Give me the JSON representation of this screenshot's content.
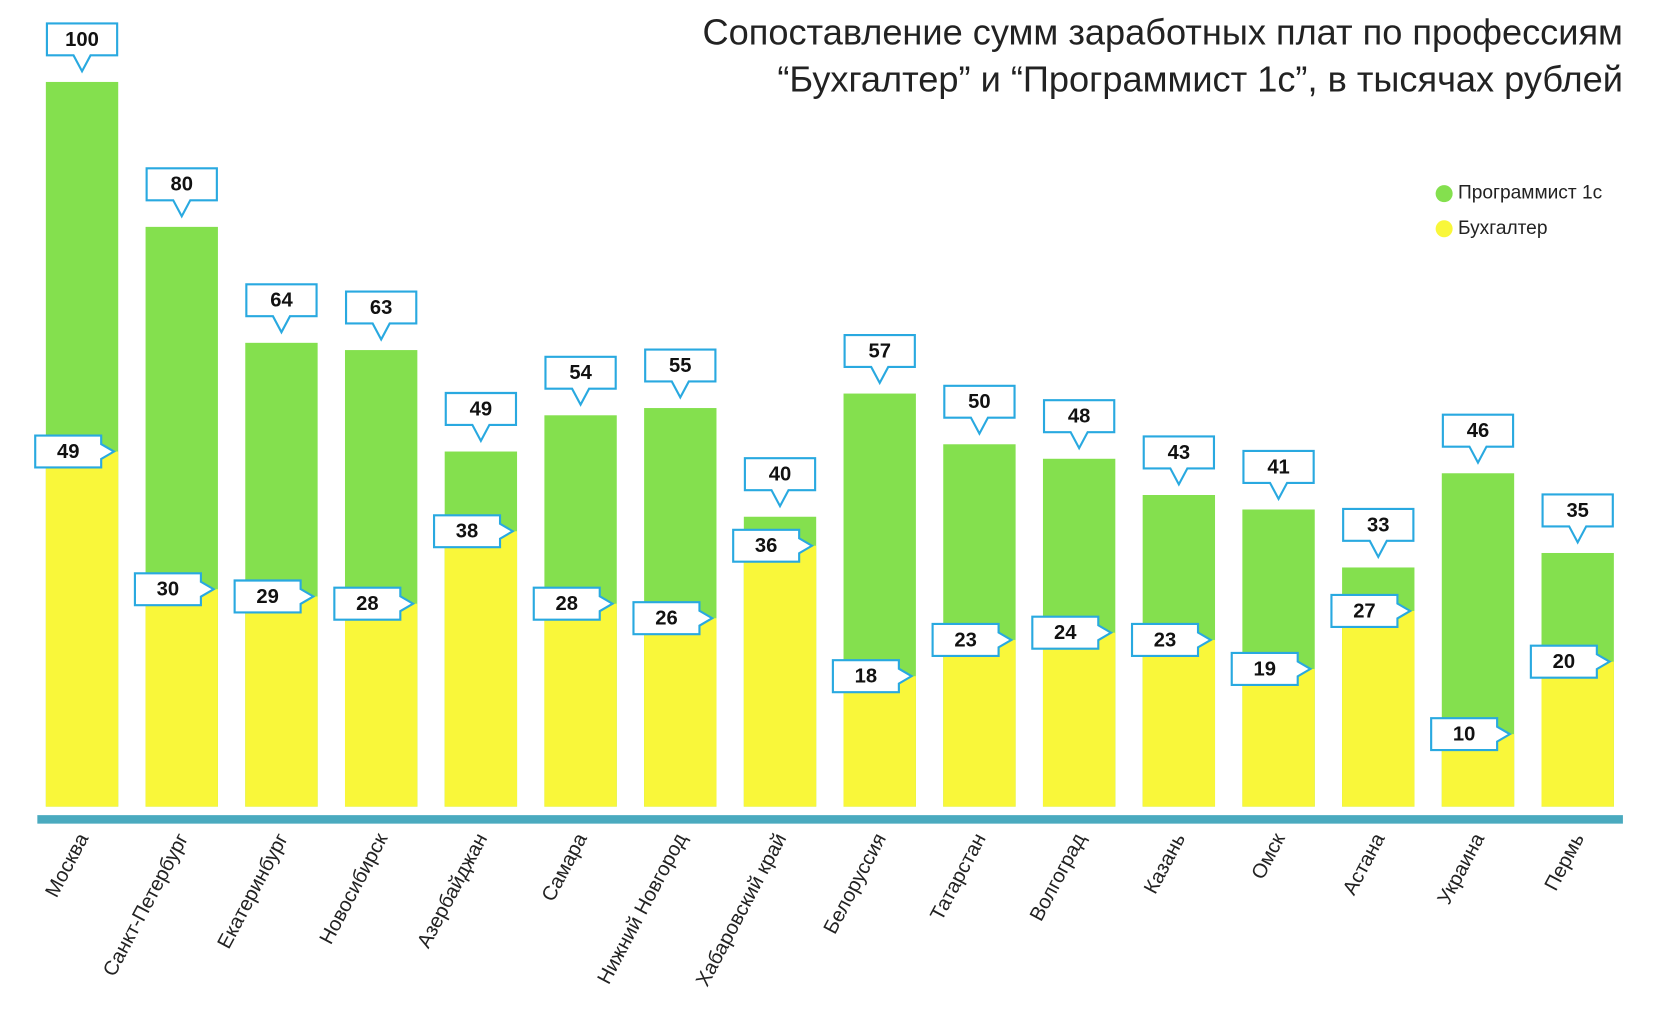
{
  "chart_data": {
    "type": "bar",
    "title": [
      "Сопоставление сумм заработных плат по профессиям",
      "“Бухгалтер” и “Программист 1с”, в тысячах рублей"
    ],
    "categories": [
      "Москва",
      "Санкт-Петербург",
      "Екатеринбург",
      "Новосибирск",
      "Азербайджан",
      "Самара",
      "Нижний Новгород",
      "Хабаровский край",
      "Белоруссия",
      "Татарстан",
      "Волгоград",
      "Казань",
      "Омск",
      "Астана",
      "Украина",
      "Пермь"
    ],
    "series": [
      {
        "name": "Программист 1с",
        "color": "#84e04e",
        "values": [
          100,
          80,
          64,
          63,
          49,
          54,
          55,
          40,
          57,
          50,
          48,
          43,
          41,
          33,
          46,
          35
        ]
      },
      {
        "name": "Бухгалтер",
        "color": "#f9f73a",
        "values": [
          49,
          30,
          29,
          28,
          38,
          28,
          26,
          36,
          18,
          23,
          24,
          23,
          19,
          27,
          10,
          20
        ]
      }
    ],
    "legend": "top-right"
  }
}
